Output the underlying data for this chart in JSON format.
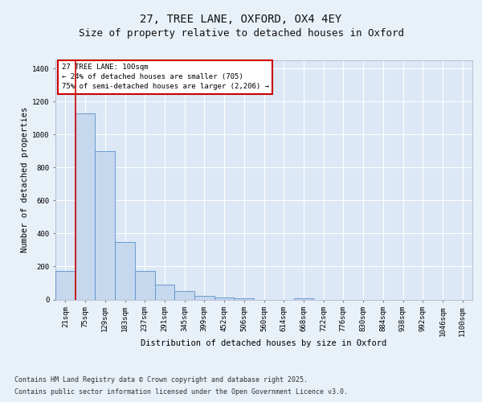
{
  "title_line1": "27, TREE LANE, OXFORD, OX4 4EY",
  "title_line2": "Size of property relative to detached houses in Oxford",
  "xlabel": "Distribution of detached houses by size in Oxford",
  "ylabel": "Number of detached properties",
  "bar_color": "#c5d8ee",
  "bar_edge_color": "#5b8fc9",
  "bg_color": "#e8f0f8",
  "plot_bg_color": "#dce8f5",
  "grid_color": "#ffffff",
  "vline_color": "#cc0000",
  "vline_x_index": 1,
  "categories": [
    "21sqm",
    "75sqm",
    "129sqm",
    "183sqm",
    "237sqm",
    "291sqm",
    "345sqm",
    "399sqm",
    "452sqm",
    "506sqm",
    "560sqm",
    "614sqm",
    "668sqm",
    "722sqm",
    "776sqm",
    "830sqm",
    "884sqm",
    "938sqm",
    "992sqm",
    "1046sqm",
    "1100sqm"
  ],
  "values": [
    175,
    1130,
    900,
    350,
    175,
    90,
    50,
    20,
    10,
    8,
    0,
    0,
    8,
    0,
    0,
    0,
    0,
    0,
    0,
    0,
    0
  ],
  "ylim": [
    0,
    1450
  ],
  "yticks": [
    0,
    200,
    400,
    600,
    800,
    1000,
    1200,
    1400
  ],
  "annotation_text": "27 TREE LANE: 100sqm\n← 24% of detached houses are smaller (705)\n75% of semi-detached houses are larger (2,206) →",
  "annotation_box_facecolor": "#ffffff",
  "annotation_box_edgecolor": "#cc0000",
  "footer_line1": "Contains HM Land Registry data © Crown copyright and database right 2025.",
  "footer_line2": "Contains public sector information licensed under the Open Government Licence v3.0.",
  "title_fontsize": 10,
  "subtitle_fontsize": 9,
  "axis_label_fontsize": 7.5,
  "tick_fontsize": 6.5,
  "annotation_fontsize": 6.5,
  "footer_fontsize": 6.0
}
